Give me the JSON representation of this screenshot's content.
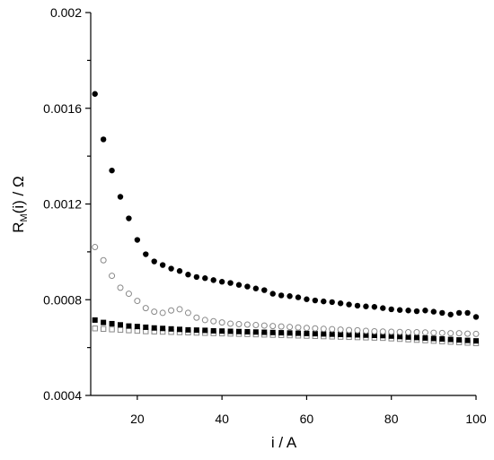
{
  "chart_data": {
    "type": "scatter",
    "title": "",
    "xlabel": "i / A",
    "ylabel_main": "R",
    "ylabel_sub": "M",
    "ylabel_rest": "(i) / Ω",
    "xlim": [
      9,
      100
    ],
    "ylim": [
      0.0004,
      0.002
    ],
    "x_ticks": [
      20,
      40,
      60,
      80,
      100
    ],
    "x_tick_labels": [
      "20",
      "40",
      "60",
      "80",
      "100"
    ],
    "y_ticks": [
      0.0004,
      0.0008,
      0.0012,
      0.0016,
      0.002
    ],
    "y_tick_labels": [
      "0.0004",
      "0.0008",
      "0.0012",
      "0.0016",
      "0.002"
    ],
    "y_minor_ticks": [
      0.0006,
      0.001,
      0.0014,
      0.0018
    ],
    "grid": false,
    "legend": "none",
    "x": [
      10,
      12,
      14,
      16,
      18,
      20,
      22,
      24,
      26,
      28,
      30,
      32,
      34,
      36,
      38,
      40,
      42,
      44,
      46,
      48,
      50,
      52,
      54,
      56,
      58,
      60,
      62,
      64,
      66,
      68,
      70,
      72,
      74,
      76,
      78,
      80,
      82,
      84,
      86,
      88,
      90,
      92,
      94,
      96,
      98,
      100
    ],
    "series": [
      {
        "marker": "filled-circle",
        "color": "#000000",
        "values": [
          0.00166,
          0.00147,
          0.00134,
          0.00123,
          0.00114,
          0.00105,
          0.00099,
          0.00096,
          0.000945,
          0.00093,
          0.00092,
          0.000905,
          0.000895,
          0.00089,
          0.000882,
          0.000875,
          0.00087,
          0.000862,
          0.000855,
          0.000847,
          0.00084,
          0.000825,
          0.000818,
          0.000815,
          0.00081,
          0.000802,
          0.000797,
          0.000793,
          0.00079,
          0.000785,
          0.00078,
          0.000775,
          0.000772,
          0.00077,
          0.000765,
          0.00076,
          0.000757,
          0.000755,
          0.000752,
          0.000755,
          0.00075,
          0.000745,
          0.000738,
          0.000745,
          0.000745,
          0.000728
        ]
      },
      {
        "marker": "open-circle",
        "color": "#888888",
        "values": [
          0.00102,
          0.000965,
          0.0009,
          0.00085,
          0.000825,
          0.000795,
          0.000765,
          0.00075,
          0.000745,
          0.000755,
          0.00076,
          0.000745,
          0.000725,
          0.000715,
          0.00071,
          0.000705,
          0.0007,
          0.000698,
          0.000696,
          0.000694,
          0.000692,
          0.00069,
          0.000688,
          0.000686,
          0.000684,
          0.000682,
          0.00068,
          0.000678,
          0.000677,
          0.000675,
          0.000673,
          0.000672,
          0.00067,
          0.000668,
          0.000667,
          0.000666,
          0.000665,
          0.000664,
          0.000664,
          0.000663,
          0.000662,
          0.000661,
          0.00066,
          0.00066,
          0.000658,
          0.000657
        ]
      },
      {
        "marker": "filled-square",
        "color": "#000000",
        "values": [
          0.000715,
          0.000705,
          0.0007,
          0.000695,
          0.00069,
          0.000688,
          0.000685,
          0.000682,
          0.00068,
          0.000678,
          0.000676,
          0.000674,
          0.000673,
          0.000672,
          0.00067,
          0.000669,
          0.000668,
          0.000667,
          0.000666,
          0.000665,
          0.000664,
          0.000663,
          0.000662,
          0.000661,
          0.00066,
          0.000659,
          0.000658,
          0.000657,
          0.000656,
          0.000655,
          0.000654,
          0.000653,
          0.000652,
          0.000651,
          0.00065,
          0.000648,
          0.000646,
          0.000644,
          0.000642,
          0.00064,
          0.000638,
          0.000636,
          0.000634,
          0.000632,
          0.00063,
          0.000628
        ]
      },
      {
        "marker": "open-square",
        "color": "#888888",
        "values": [
          0.00068,
          0.000678,
          0.000676,
          0.000674,
          0.000672,
          0.00067,
          0.000668,
          0.000667,
          0.000666,
          0.000665,
          0.000664,
          0.000663,
          0.000662,
          0.000661,
          0.00066,
          0.000659,
          0.000658,
          0.000657,
          0.000656,
          0.000655,
          0.000654,
          0.000653,
          0.000652,
          0.000651,
          0.00065,
          0.000649,
          0.000648,
          0.000647,
          0.000646,
          0.000645,
          0.000644,
          0.000643,
          0.000642,
          0.000641,
          0.00064,
          0.000638,
          0.000636,
          0.000634,
          0.000632,
          0.00063,
          0.000628,
          0.000626,
          0.000624,
          0.000622,
          0.00062,
          0.000618
        ]
      }
    ]
  }
}
